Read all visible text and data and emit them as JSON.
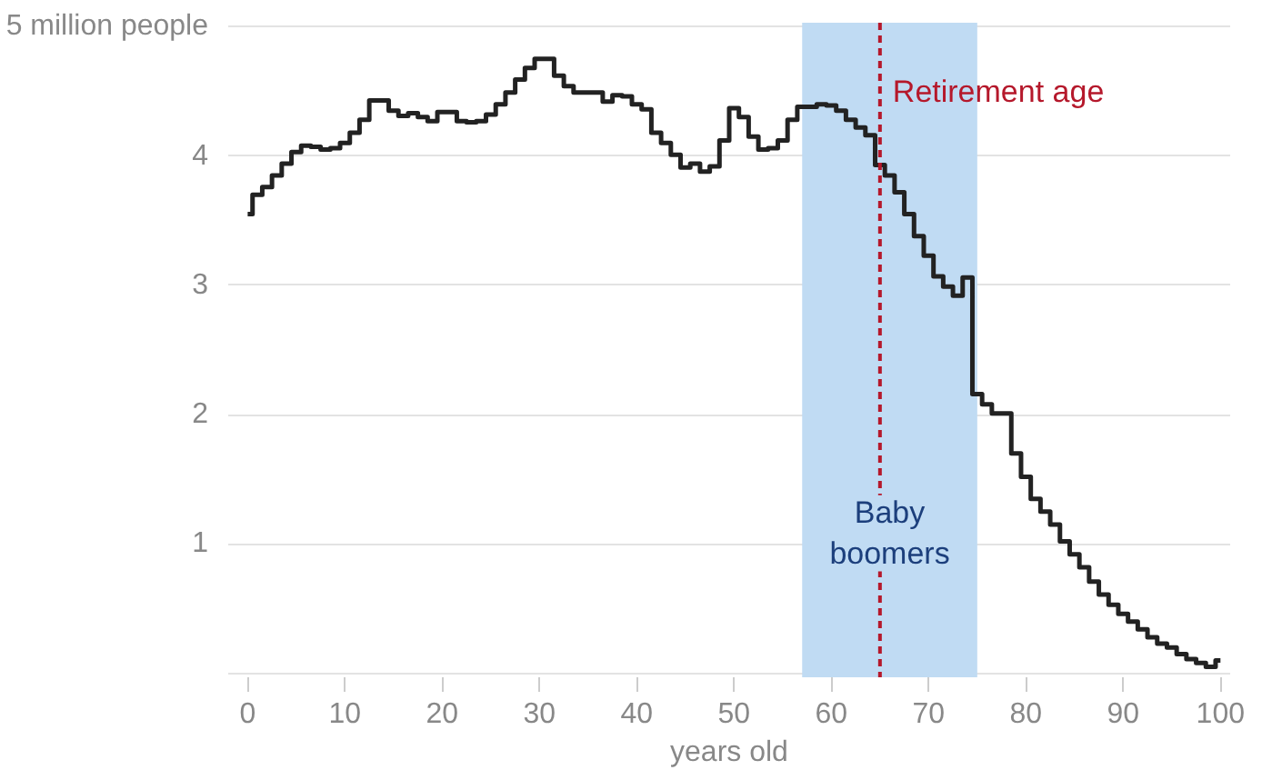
{
  "chart_data": {
    "type": "step",
    "xlabel": "years old",
    "x": [
      0,
      1,
      2,
      3,
      4,
      5,
      6,
      7,
      8,
      9,
      10,
      11,
      12,
      13,
      14,
      15,
      16,
      17,
      18,
      19,
      20,
      21,
      22,
      23,
      24,
      25,
      26,
      27,
      28,
      29,
      30,
      31,
      32,
      33,
      34,
      35,
      36,
      37,
      38,
      39,
      40,
      41,
      42,
      43,
      44,
      45,
      46,
      47,
      48,
      49,
      50,
      51,
      52,
      53,
      54,
      55,
      56,
      57,
      58,
      59,
      60,
      61,
      62,
      63,
      64,
      65,
      66,
      67,
      68,
      69,
      70,
      71,
      72,
      73,
      74,
      75,
      76,
      77,
      78,
      79,
      80,
      81,
      82,
      83,
      84,
      85,
      86,
      87,
      88,
      89,
      90,
      91,
      92,
      93,
      94,
      95,
      96,
      97,
      98,
      99,
      100
    ],
    "series": [
      {
        "color": "#222222",
        "values": [
          3.55,
          3.7,
          3.76,
          3.85,
          3.94,
          4.03,
          4.08,
          4.07,
          4.05,
          4.06,
          4.1,
          4.18,
          4.28,
          4.43,
          4.43,
          4.35,
          4.31,
          4.33,
          4.3,
          4.27,
          4.34,
          4.34,
          4.27,
          4.26,
          4.27,
          4.32,
          4.4,
          4.49,
          4.59,
          4.68,
          4.75,
          4.75,
          4.62,
          4.54,
          4.49,
          4.49,
          4.49,
          4.42,
          4.47,
          4.46,
          4.4,
          4.36,
          4.18,
          4.1,
          4.01,
          3.91,
          3.94,
          3.88,
          3.92,
          4.12,
          4.37,
          4.3,
          4.15,
          4.05,
          4.06,
          4.12,
          4.28,
          4.38,
          4.38,
          4.4,
          4.39,
          4.35,
          4.28,
          4.22,
          4.16,
          3.93,
          3.85,
          3.72,
          3.55,
          3.38,
          3.23,
          3.07,
          2.99,
          2.92,
          3.06,
          2.16,
          2.08,
          2.01,
          2.01,
          1.7,
          1.52,
          1.35,
          1.25,
          1.15,
          1.02,
          0.92,
          0.82,
          0.71,
          0.61,
          0.53,
          0.46,
          0.4,
          0.34,
          0.28,
          0.23,
          0.2,
          0.15,
          0.11,
          0.08,
          0.05,
          0.1
        ]
      }
    ],
    "xlim": [
      -2,
      101
    ],
    "ylim": [
      -0.03,
      5.03
    ],
    "xticks": [
      0,
      10,
      20,
      30,
      40,
      50,
      60,
      70,
      80,
      90,
      100
    ],
    "yticks": [
      {
        "value": 0,
        "label": null
      },
      1,
      2,
      3,
      4,
      {
        "value": 5,
        "label": "5 million people"
      }
    ],
    "grid": "y",
    "bands": [
      {
        "axis": "x",
        "from": 57,
        "to": 75,
        "label": "Baby boomers",
        "color": "#c0dbf3"
      }
    ],
    "ref_lines": [
      {
        "axis": "x",
        "value": 65,
        "label": "Retirement age",
        "color": "#b5182b",
        "line_style": "dashed"
      }
    ]
  }
}
